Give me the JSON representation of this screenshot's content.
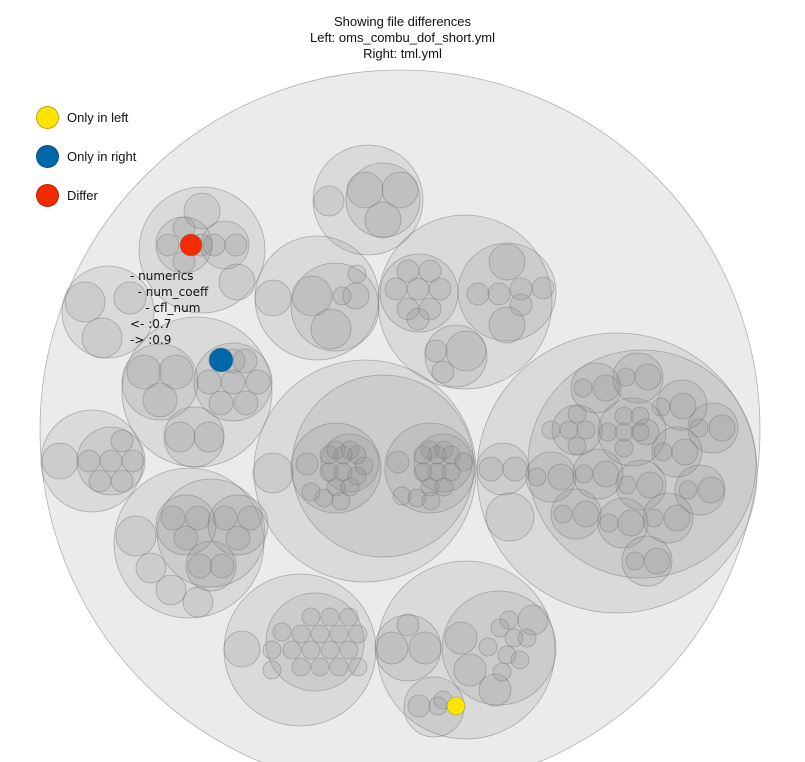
{
  "title": {
    "line1": "Showing file differences",
    "line2": "Left: oms_combu_dof_short.yml",
    "line3": "Right: tml.yml"
  },
  "legend": [
    {
      "label": "Only in left",
      "color": "#ffe400"
    },
    {
      "label": "Only in right",
      "color": "#0068a9"
    },
    {
      "label": "Differ",
      "color": "#f22c00"
    }
  ],
  "colors": {
    "node_fill": "#8a8a8a",
    "node_stroke": "#7a7a7a",
    "only_left": "#ffe400",
    "only_right": "#0068a9",
    "differ": "#f22c00"
  },
  "tooltip": {
    "lines": [
      "- numerics",
      "  - num_coeff",
      "    - cfl_num",
      "<- :0.7",
      "-> :0.9"
    ]
  }
}
